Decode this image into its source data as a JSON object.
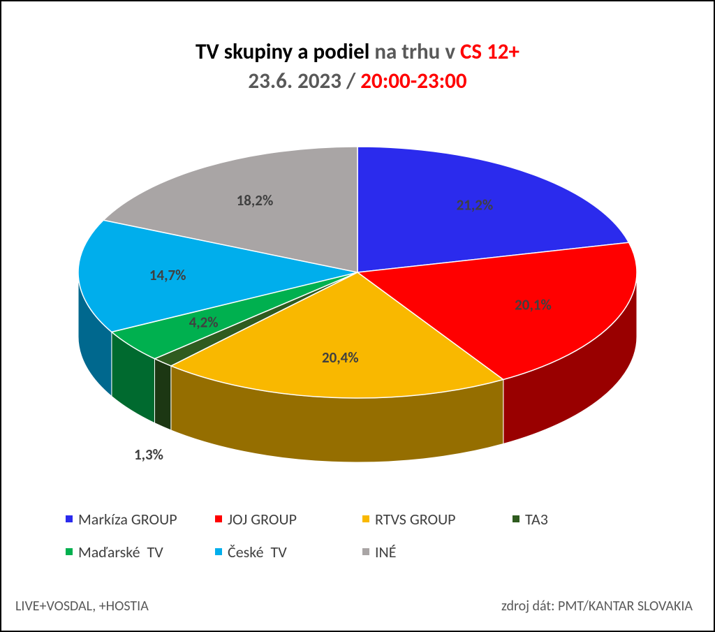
{
  "chart_data": {
    "type": "pie",
    "title": [
      [
        {
          "text": "TV skupiny a podiel",
          "color": "#000000"
        },
        {
          "text": " na trhu v ",
          "color": "#595959"
        },
        {
          "text": "CS 12+",
          "color": "#ff0000"
        }
      ],
      [
        {
          "text": "23.6. 2023 / ",
          "color": "#595959"
        },
        {
          "text": "20:00-23:00",
          "color": "#ff0000"
        }
      ]
    ],
    "categories": [
      "Markíza GROUP",
      "JOJ GROUP",
      "RTVS GROUP",
      "TA3",
      "Maďarské  TV",
      "České  TV",
      "INÉ"
    ],
    "values": [
      21.2,
      20.1,
      20.4,
      1.3,
      4.2,
      14.7,
      18.2
    ],
    "value_labels": [
      "21,2%",
      "20,1%",
      "20,4%",
      "1,3%",
      "4,2%",
      "14,7%",
      "18,2%"
    ],
    "colors": [
      "#2b2bed",
      "#ff0000",
      "#f9b800",
      "#2f5b1f",
      "#00b04f",
      "#00aeec",
      "#a9a5a5"
    ],
    "legend": "bottom",
    "footer_left": "LIVE+VOSDAL, +HOSTIA",
    "footer_right": "zdroj dát: PMT/KANTAR SLOVAKIA"
  }
}
